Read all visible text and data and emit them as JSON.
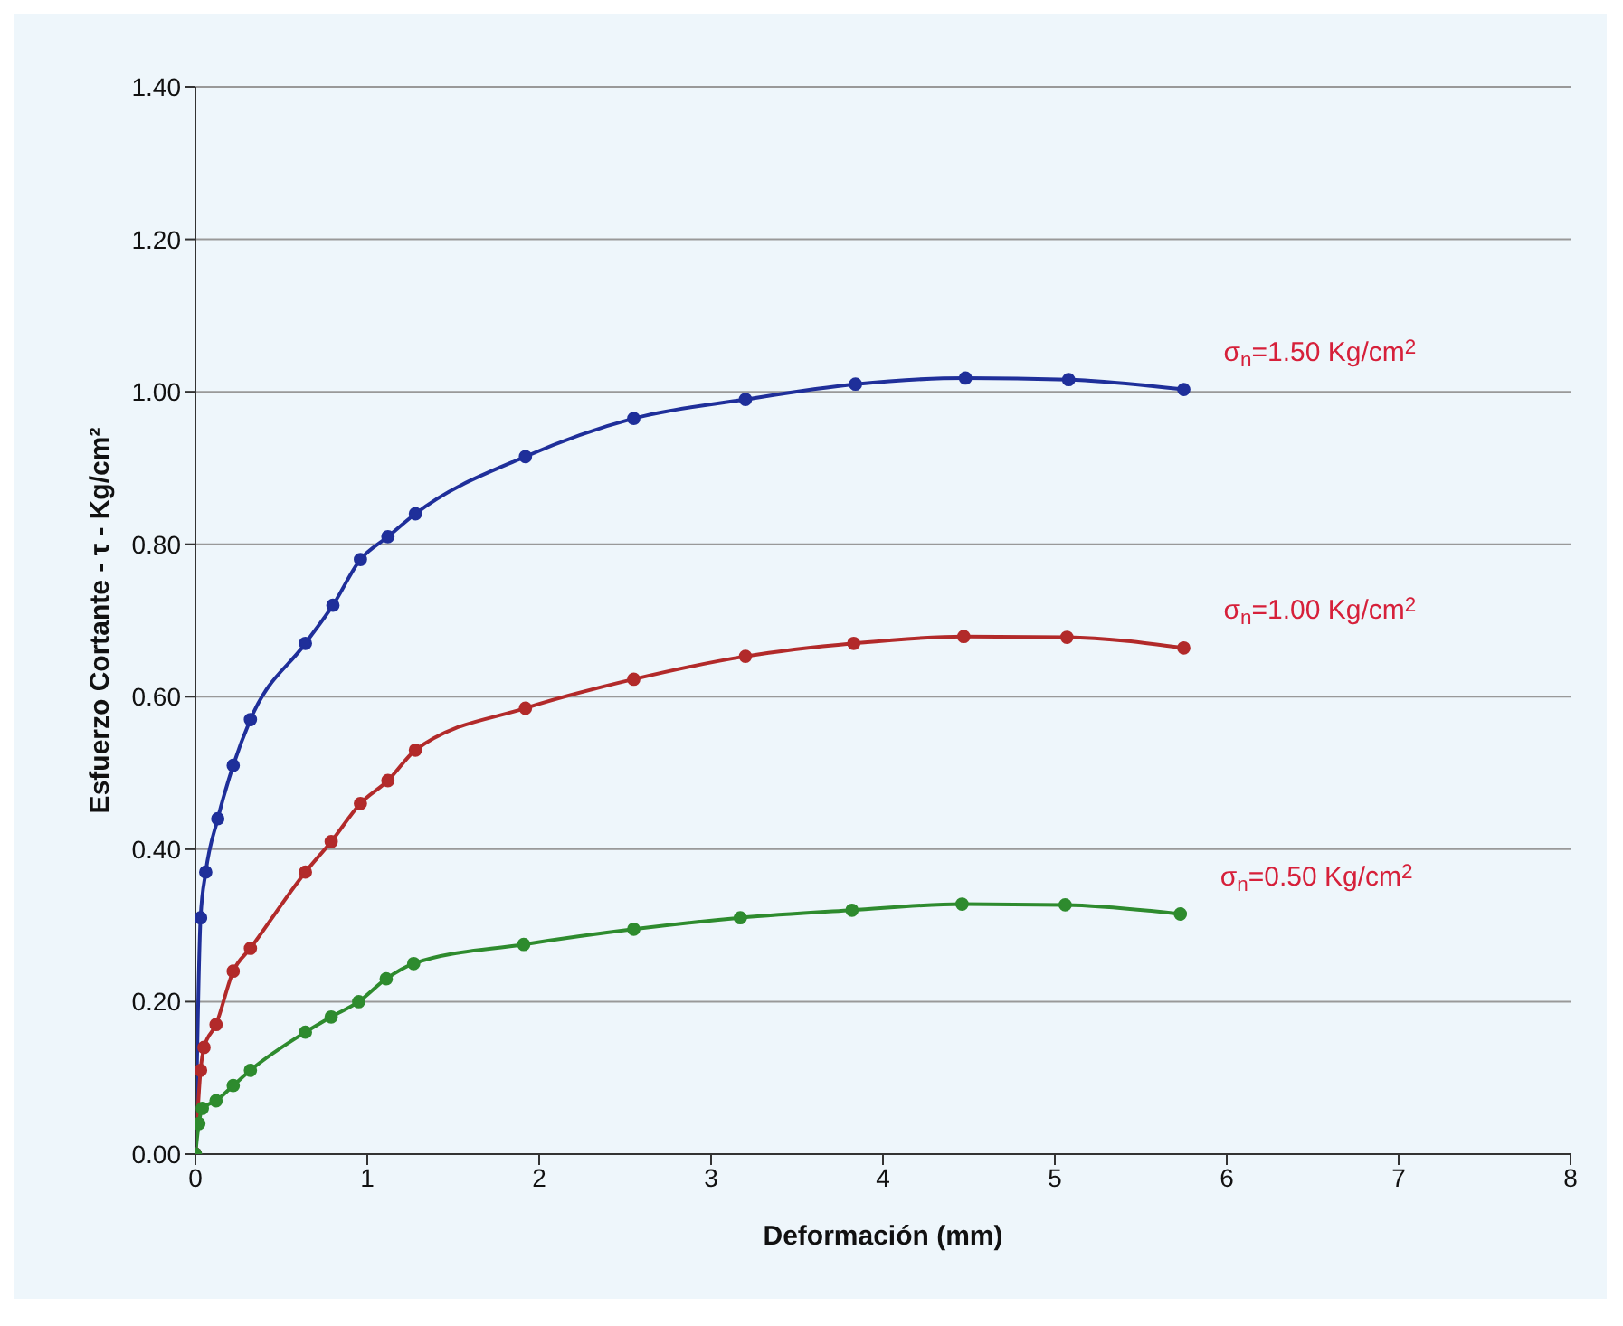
{
  "chart_data": {
    "type": "line",
    "xlabel": "Deformación (mm)",
    "ylabel": "Esfuerzo Cortante - τ - Kg/cm²",
    "xlim": [
      0,
      8
    ],
    "xticks": [
      0,
      1,
      2,
      3,
      4,
      5,
      6,
      7,
      8
    ],
    "ylim": [
      0,
      1.4
    ],
    "yticks": [
      {
        "value": 0,
        "label": "0.00"
      },
      {
        "value": 0.2,
        "label": "0.20"
      },
      {
        "value": 0.4,
        "label": "0.40"
      },
      {
        "value": 0.6,
        "label": "0.60"
      },
      {
        "value": 0.8,
        "label": "0.80"
      },
      {
        "value": 1,
        "label": "1.00"
      },
      {
        "value": 1.2,
        "label": "1.20"
      },
      {
        "value": 1.4,
        "label": "1.40"
      }
    ],
    "grid": "y",
    "marker": "circle",
    "line_style": "solid",
    "legend": false,
    "series": [
      {
        "name": "σ$_{n}$=1.50 Kg/cm$^{2}$",
        "color": "#1f2f9a",
        "x": [
          0,
          0.03,
          0.06,
          0.13,
          0.22,
          0.32,
          0.64,
          0.8,
          0.96,
          1.12,
          1.28,
          1.92,
          2.55,
          3.2,
          3.84,
          4.48,
          5.08,
          5.75
        ],
        "values": [
          0,
          0.31,
          0.37,
          0.44,
          0.51,
          0.57,
          0.67,
          0.72,
          0.78,
          0.81,
          0.84,
          0.915,
          0.965,
          0.99,
          1.01,
          1.018,
          1.016,
          1.003
        ]
      },
      {
        "name": "σ$_{n}$=1.00 Kg/cm$^{2}$",
        "color": "#b22a2a",
        "x": [
          0,
          0.03,
          0.05,
          0.12,
          0.22,
          0.32,
          0.64,
          0.79,
          0.96,
          1.12,
          1.28,
          1.92,
          2.55,
          3.2,
          3.83,
          4.47,
          5.07,
          5.75
        ],
        "values": [
          0,
          0.11,
          0.14,
          0.17,
          0.24,
          0.27,
          0.37,
          0.41,
          0.46,
          0.49,
          0.53,
          0.585,
          0.623,
          0.653,
          0.67,
          0.679,
          0.678,
          0.664
        ]
      },
      {
        "name": "σ$_{n}$=0.50 Kg/cm$^{2}$",
        "color": "#2e8b2e",
        "x": [
          0,
          0.02,
          0.04,
          0.12,
          0.22,
          0.32,
          0.64,
          0.79,
          0.95,
          1.11,
          1.27,
          1.91,
          2.55,
          3.17,
          3.82,
          4.46,
          5.06,
          5.73
        ],
        "values": [
          0,
          0.04,
          0.06,
          0.07,
          0.09,
          0.11,
          0.16,
          0.18,
          0.2,
          0.23,
          0.25,
          0.275,
          0.295,
          0.31,
          0.32,
          0.328,
          0.327,
          0.315
        ]
      }
    ]
  }
}
